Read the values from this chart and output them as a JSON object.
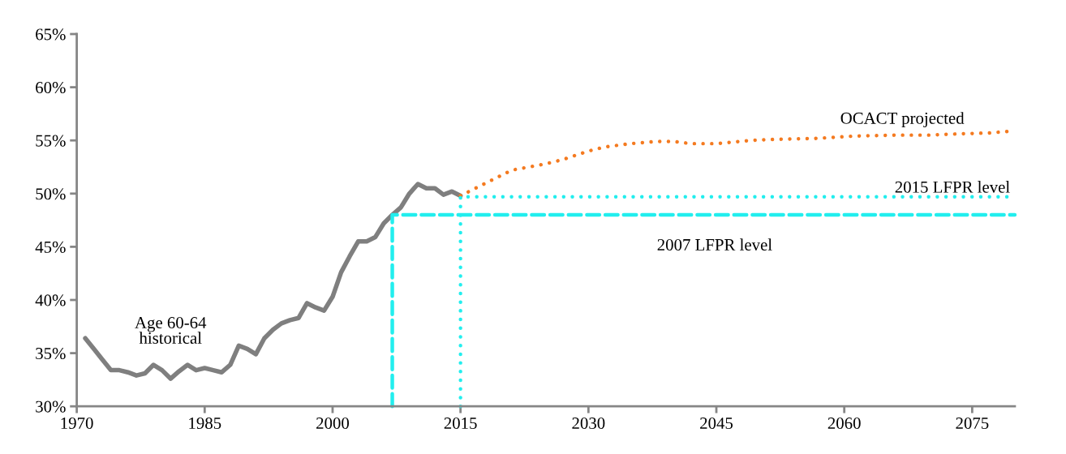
{
  "chart_data": {
    "type": "line",
    "xlim": [
      1970,
      2080
    ],
    "xticks": [
      1970,
      1985,
      2000,
      2015,
      2030,
      2045,
      2060,
      2075
    ],
    "ylim": [
      30,
      65
    ],
    "yticks": [
      {
        "value": 30,
        "label": "30%"
      },
      {
        "value": 35,
        "label": "35%"
      },
      {
        "value": 40,
        "label": "40%"
      },
      {
        "value": 45,
        "label": "45%"
      },
      {
        "value": 50,
        "label": "50%"
      },
      {
        "value": 55,
        "label": "55%"
      },
      {
        "value": 60,
        "label": "60%"
      },
      {
        "value": 65,
        "label": "65%"
      }
    ],
    "grid": false,
    "legend": false,
    "series": [
      {
        "name": "Age 60-64\nhistorical",
        "color": "#7f7f7f",
        "line_style": "solid",
        "x": [
          1971,
          1972,
          1973,
          1974,
          1975,
          1976,
          1977,
          1978,
          1979,
          1980,
          1981,
          1982,
          1983,
          1984,
          1985,
          1986,
          1987,
          1988,
          1989,
          1990,
          1991,
          1992,
          1993,
          1994,
          1995,
          1996,
          1997,
          1998,
          1999,
          2000,
          2001,
          2002,
          2003,
          2004,
          2005,
          2006,
          2007,
          2008,
          2009,
          2010,
          2011,
          2012,
          2013,
          2014,
          2015
        ],
        "values": [
          36.4,
          35.4,
          34.4,
          33.4,
          33.4,
          33.2,
          32.9,
          33.1,
          33.9,
          33.4,
          32.6,
          33.3,
          33.9,
          33.4,
          33.6,
          33.4,
          33.2,
          33.9,
          35.7,
          35.4,
          34.9,
          36.4,
          37.2,
          37.8,
          38.1,
          38.3,
          39.7,
          39.3,
          39.0,
          40.3,
          42.6,
          44.1,
          45.5,
          45.5,
          45.9,
          47.2,
          48.0,
          48.7,
          50.0,
          50.9,
          50.5,
          50.5,
          49.9,
          50.2,
          49.8
        ]
      },
      {
        "name": "OCACT projected",
        "color": "#f47a20",
        "line_style": "dotted",
        "x": [
          2015,
          2018,
          2021,
          2025,
          2027,
          2030,
          2032,
          2035,
          2038,
          2040,
          2042,
          2045,
          2049,
          2052,
          2057,
          2061,
          2066,
          2070,
          2073,
          2077,
          2080
        ],
        "values": [
          49.8,
          51.0,
          52.2,
          52.8,
          53.2,
          54.0,
          54.4,
          54.7,
          54.9,
          54.9,
          54.7,
          54.7,
          55.0,
          55.1,
          55.2,
          55.4,
          55.5,
          55.5,
          55.6,
          55.7,
          55.9
        ]
      },
      {
        "name": "2015 LFPR level",
        "color": "#22eeee",
        "line_style": "dotted",
        "x": [
          2015,
          2015,
          2080
        ],
        "values": [
          30,
          49.7,
          49.7
        ]
      },
      {
        "name": "2007 LFPR level",
        "color": "#22eeee",
        "line_style": "dashed",
        "x": [
          2007,
          2007,
          2080
        ],
        "values": [
          30,
          48.0,
          48.0
        ]
      }
    ]
  }
}
